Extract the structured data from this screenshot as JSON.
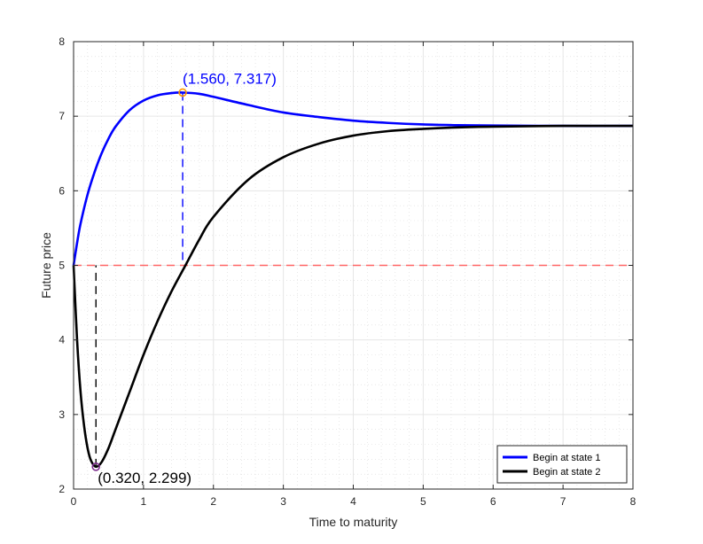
{
  "chart_data": {
    "type": "line",
    "xlabel": "Time to maturity",
    "ylabel": "Future price",
    "xlim": [
      0,
      8
    ],
    "ylim": [
      2,
      8
    ],
    "xticks": [
      "0",
      "1",
      "2",
      "3",
      "4",
      "5",
      "6",
      "7",
      "8"
    ],
    "yticks": [
      "2",
      "3",
      "4",
      "5",
      "6",
      "7",
      "8"
    ],
    "grid": true,
    "minor_grid": true,
    "legend_position": "bottom-right",
    "series": [
      {
        "name": "Begin at state 1",
        "color": "#0000ff",
        "x": [
          0,
          0.05,
          0.1,
          0.2,
          0.3,
          0.4,
          0.5,
          0.6,
          0.8,
          1.0,
          1.2,
          1.4,
          1.56,
          1.8,
          2.0,
          2.5,
          3.0,
          3.5,
          4.0,
          4.5,
          5.0,
          5.5,
          6.0,
          7.0,
          8.0
        ],
        "y": [
          5.0,
          5.3,
          5.56,
          5.95,
          6.25,
          6.5,
          6.7,
          6.86,
          7.08,
          7.21,
          7.28,
          7.31,
          7.317,
          7.3,
          7.26,
          7.15,
          7.05,
          6.99,
          6.94,
          6.91,
          6.89,
          6.88,
          6.875,
          6.87,
          6.87
        ]
      },
      {
        "name": "Begin at state 2",
        "color": "#000000",
        "x": [
          0,
          0.05,
          0.1,
          0.15,
          0.2,
          0.25,
          0.32,
          0.4,
          0.5,
          0.6,
          0.8,
          1.0,
          1.2,
          1.4,
          1.6,
          1.8,
          2.0,
          2.5,
          3.0,
          3.5,
          4.0,
          4.5,
          5.0,
          5.5,
          6.0,
          7.0,
          8.0
        ],
        "y": [
          5.0,
          4.0,
          3.3,
          2.85,
          2.55,
          2.38,
          2.299,
          2.36,
          2.55,
          2.8,
          3.3,
          3.8,
          4.25,
          4.65,
          5.0,
          5.35,
          5.65,
          6.15,
          6.45,
          6.63,
          6.74,
          6.8,
          6.83,
          6.85,
          6.86,
          6.87,
          6.87
        ]
      }
    ],
    "reference_line": {
      "y": 5,
      "color": "#ff6666"
    },
    "annotations": [
      {
        "text": "(1.560, 7.317)",
        "x": 1.56,
        "y": 7.317,
        "color": "#0000ff",
        "marker_color": "#ff9900"
      },
      {
        "text": "(0.320, 2.299)",
        "x": 0.32,
        "y": 2.299,
        "color": "#000000",
        "marker_color": "#7e2f8e"
      }
    ]
  }
}
